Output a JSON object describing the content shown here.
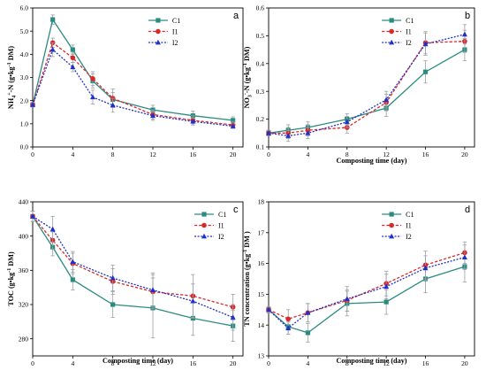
{
  "series_names": [
    "C1",
    "I1",
    "I2"
  ],
  "colors": {
    "C1": "#2a8c80",
    "I1": "#d9282a",
    "I2": "#2030c8",
    "error": "#9aa0a6"
  },
  "chart_data": [
    {
      "panel": "a",
      "type": "line",
      "ylabel_parts": [
        {
          "t": "NH",
          "s": "n"
        },
        {
          "t": "4",
          "s": "sub"
        },
        {
          "t": "+",
          "s": "sup"
        },
        {
          "t": "-N (g•kg",
          "s": "n"
        },
        {
          "t": "-1",
          "s": "sup"
        },
        {
          "t": " DM)",
          "s": "n"
        }
      ],
      "xlabel": "",
      "xlim": [
        0,
        21
      ],
      "ylim": [
        0,
        6
      ],
      "xticks": [
        0,
        4,
        8,
        12,
        16,
        20
      ],
      "yticks": [
        0.0,
        1.0,
        2.0,
        3.0,
        4.0,
        5.0,
        6.0
      ],
      "ytick_labels": [
        "0.0",
        "1.0",
        "2.0",
        "3.0",
        "4.0",
        "5.0",
        "6.0"
      ],
      "legend": "top-center",
      "series": [
        {
          "name": "C1",
          "x": [
            0,
            2,
            4,
            6,
            8,
            12,
            16,
            20
          ],
          "y": [
            1.82,
            5.5,
            4.2,
            2.85,
            2.05,
            1.6,
            1.35,
            1.15
          ],
          "err": [
            0.1,
            0.2,
            0.2,
            0.3,
            0.3,
            0.2,
            0.2,
            0.15
          ]
        },
        {
          "name": "I1",
          "x": [
            0,
            2,
            4,
            6,
            8,
            12,
            16,
            20
          ],
          "y": [
            1.82,
            4.5,
            3.85,
            2.95,
            2.1,
            1.4,
            1.15,
            0.95
          ],
          "err": [
            0.1,
            0.2,
            0.2,
            0.3,
            0.4,
            0.2,
            0.2,
            0.15
          ]
        },
        {
          "name": "I2",
          "x": [
            0,
            2,
            4,
            6,
            8,
            12,
            16,
            20
          ],
          "y": [
            1.82,
            4.2,
            3.45,
            2.15,
            1.8,
            1.35,
            1.1,
            0.9
          ],
          "err": [
            0.1,
            0.3,
            0.2,
            0.3,
            0.3,
            0.2,
            0.15,
            0.1
          ]
        }
      ]
    },
    {
      "panel": "b",
      "type": "line",
      "ylabel_parts": [
        {
          "t": "NO",
          "s": "n"
        },
        {
          "t": "3",
          "s": "sub"
        },
        {
          "t": "-",
          "s": "sup"
        },
        {
          "t": "-N (g•kg",
          "s": "n"
        },
        {
          "t": "-1",
          "s": "sup"
        },
        {
          "t": " DM)",
          "s": "n"
        }
      ],
      "xlabel": "Composting time (day)",
      "xlim": [
        0,
        21
      ],
      "ylim": [
        0.1,
        0.6
      ],
      "xticks": [
        0,
        4,
        8,
        12,
        16,
        20
      ],
      "yticks": [
        0.1,
        0.2,
        0.3,
        0.4,
        0.5,
        0.6
      ],
      "ytick_labels": [
        "0.1",
        "0.2",
        "0.3",
        "0.4",
        "0.5",
        "0.6"
      ],
      "legend": "top-center",
      "series": [
        {
          "name": "C1",
          "x": [
            0,
            2,
            4,
            8,
            12,
            16,
            20
          ],
          "y": [
            0.15,
            0.16,
            0.17,
            0.2,
            0.24,
            0.37,
            0.45
          ],
          "err": [
            0.01,
            0.02,
            0.02,
            0.02,
            0.03,
            0.04,
            0.04
          ]
        },
        {
          "name": "I1",
          "x": [
            0,
            2,
            4,
            8,
            12,
            16,
            20
          ],
          "y": [
            0.15,
            0.15,
            0.16,
            0.17,
            0.26,
            0.475,
            0.48
          ],
          "err": [
            0.01,
            0.02,
            0.02,
            0.02,
            0.03,
            0.04,
            0.04
          ]
        },
        {
          "name": "I2",
          "x": [
            0,
            2,
            4,
            8,
            12,
            16,
            20
          ],
          "y": [
            0.15,
            0.14,
            0.15,
            0.19,
            0.27,
            0.47,
            0.505
          ],
          "err": [
            0.01,
            0.02,
            0.02,
            0.02,
            0.03,
            0.04,
            0.035
          ]
        }
      ]
    },
    {
      "panel": "c",
      "type": "line",
      "ylabel_parts": [
        {
          "t": "TOC (g•kg",
          "s": "n"
        },
        {
          "t": "-1",
          "s": "sup"
        },
        {
          "t": " DM)",
          "s": "n"
        }
      ],
      "xlabel": "Composting time (day)",
      "xlim": [
        0,
        21
      ],
      "ylim": [
        260,
        440
      ],
      "xticks": [
        0,
        4,
        8,
        12,
        16,
        20
      ],
      "yticks": [
        280,
        320,
        360,
        400,
        440
      ],
      "ytick_labels": [
        "280",
        "320",
        "360",
        "400",
        "440"
      ],
      "legend": "top-right",
      "series": [
        {
          "name": "C1",
          "x": [
            0,
            2,
            4,
            8,
            12,
            16,
            20
          ],
          "y": [
            423,
            387,
            349,
            320,
            316,
            304,
            295
          ],
          "err": [
            6,
            10,
            12,
            15,
            35,
            20,
            18
          ]
        },
        {
          "name": "I1",
          "x": [
            0,
            2,
            4,
            8,
            12,
            16,
            20
          ],
          "y": [
            423,
            395,
            368,
            347,
            335,
            330,
            317
          ],
          "err": [
            6,
            10,
            12,
            15,
            20,
            25,
            15
          ]
        },
        {
          "name": "I2",
          "x": [
            0,
            2,
            4,
            8,
            12,
            16,
            20
          ],
          "y": [
            423,
            408,
            370,
            351,
            337,
            324,
            305
          ],
          "err": [
            6,
            15,
            12,
            15,
            20,
            20,
            15
          ]
        }
      ]
    },
    {
      "panel": "d",
      "type": "line",
      "ylabel_parts": [
        {
          "t": "TN concentration (g•kg",
          "s": "n"
        },
        {
          "t": "-1",
          "s": "sup"
        },
        {
          "t": " DM )",
          "s": "n"
        }
      ],
      "xlabel": "Composting time (day)",
      "xlim": [
        0,
        21
      ],
      "ylim": [
        13,
        18
      ],
      "xticks": [
        0,
        4,
        8,
        12,
        16,
        20
      ],
      "yticks": [
        13,
        14,
        15,
        16,
        17,
        18
      ],
      "ytick_labels": [
        "13",
        "14",
        "15",
        "16",
        "17",
        "18"
      ],
      "legend": "top-center",
      "series": [
        {
          "name": "C1",
          "x": [
            0,
            2,
            4,
            8,
            12,
            16,
            20
          ],
          "y": [
            14.5,
            13.95,
            13.75,
            14.7,
            14.75,
            15.5,
            15.9
          ],
          "err": [
            0.1,
            0.25,
            0.3,
            0.4,
            0.4,
            0.45,
            0.5
          ]
        },
        {
          "name": "I1",
          "x": [
            0,
            2,
            4,
            8,
            12,
            16,
            20
          ],
          "y": [
            14.5,
            14.2,
            14.4,
            14.8,
            15.35,
            15.95,
            16.35
          ],
          "err": [
            0.1,
            0.3,
            0.3,
            0.35,
            0.4,
            0.45,
            0.35
          ]
        },
        {
          "name": "I2",
          "x": [
            0,
            2,
            4,
            8,
            12,
            16,
            20
          ],
          "y": [
            14.5,
            13.9,
            14.4,
            14.85,
            15.25,
            15.85,
            16.2
          ],
          "err": [
            0.1,
            0.2,
            0.3,
            0.4,
            0.4,
            0.4,
            0.4
          ]
        }
      ]
    }
  ]
}
